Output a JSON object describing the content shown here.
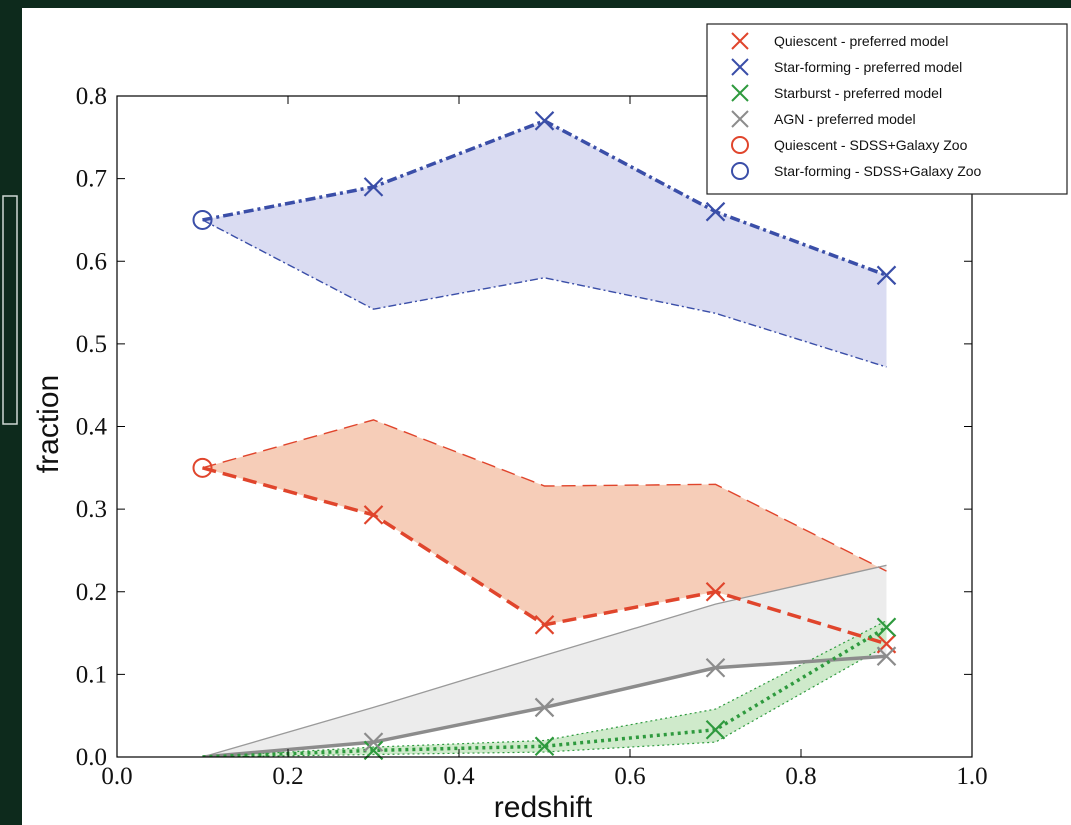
{
  "chart_data": {
    "type": "line",
    "xlabel": "redshift",
    "ylabel": "fraction",
    "xlim": [
      0.0,
      1.0
    ],
    "ylim": [
      0.0,
      0.8
    ],
    "x_ticks": [
      "0.0",
      "0.2",
      "0.4",
      "0.6",
      "0.8",
      "1.0"
    ],
    "y_ticks": [
      "0.0",
      "0.1",
      "0.2",
      "0.3",
      "0.4",
      "0.5",
      "0.6",
      "0.7",
      "0.8"
    ],
    "grid": false,
    "legend_position": "top-right",
    "series": [
      {
        "name": "Quiescent - preferred model",
        "color": "#e0452c",
        "marker": "x",
        "x": [
          0.3,
          0.5,
          0.7,
          0.9
        ],
        "y": [
          0.293,
          0.16,
          0.2,
          0.137
        ],
        "line_x": [
          0.1,
          0.3,
          0.5,
          0.7,
          0.9
        ],
        "line_y": [
          0.35,
          0.293,
          0.16,
          0.2,
          0.137
        ],
        "band_upper": [
          0.35,
          0.408,
          0.328,
          0.33,
          0.225
        ],
        "band_fill": "#f6cdb8"
      },
      {
        "name": "Star-forming - preferred model",
        "color": "#3a4ea8",
        "marker": "x",
        "x": [
          0.3,
          0.5,
          0.7,
          0.9
        ],
        "y": [
          0.69,
          0.77,
          0.66,
          0.583
        ],
        "line_x": [
          0.1,
          0.3,
          0.5,
          0.7,
          0.9
        ],
        "line_y": [
          0.65,
          0.69,
          0.77,
          0.66,
          0.583
        ],
        "band_lower": [
          0.65,
          0.542,
          0.58,
          0.537,
          0.472
        ],
        "band_fill": "#dadcf2"
      },
      {
        "name": "Starburst - preferred model",
        "color": "#2e9a3e",
        "marker": "x",
        "x": [
          0.3,
          0.5,
          0.7,
          0.9
        ],
        "y": [
          0.008,
          0.013,
          0.033,
          0.157
        ],
        "line_x": [
          0.1,
          0.3,
          0.5,
          0.7,
          0.9
        ],
        "line_y": [
          0.0,
          0.008,
          0.013,
          0.033,
          0.157
        ],
        "band_upper": [
          0.0,
          0.012,
          0.02,
          0.058,
          0.165
        ],
        "band_lower": [
          0.0,
          0.003,
          0.006,
          0.018,
          0.135
        ],
        "band_fill": "#cfeacb"
      },
      {
        "name": "AGN - preferred model",
        "color": "#8c8c8c",
        "marker": "x",
        "x": [
          0.3,
          0.5,
          0.7,
          0.9
        ],
        "y": [
          0.018,
          0.06,
          0.108,
          0.122
        ],
        "line_x": [
          0.1,
          0.3,
          0.5,
          0.7,
          0.9
        ],
        "line_y": [
          0.0,
          0.018,
          0.06,
          0.108,
          0.122
        ],
        "band_upper": [
          0.0,
          0.06,
          0.123,
          0.185,
          0.232
        ],
        "band_fill": "#ececec"
      },
      {
        "name": "Quiescent - SDSS+Galaxy Zoo",
        "color": "#e0452c",
        "marker": "o",
        "x": [
          0.1
        ],
        "y": [
          0.35
        ]
      },
      {
        "name": "Star-forming - SDSS+Galaxy Zoo",
        "color": "#3a4ea8",
        "marker": "o",
        "x": [
          0.1
        ],
        "y": [
          0.65
        ]
      }
    ]
  }
}
